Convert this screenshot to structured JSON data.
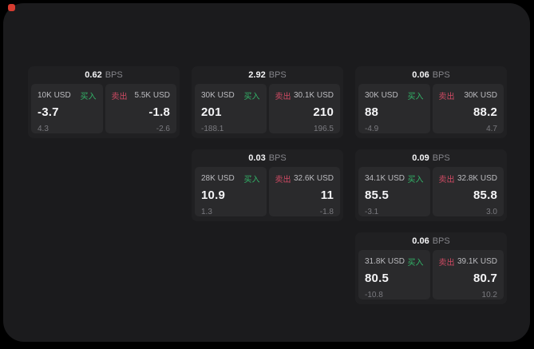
{
  "app": {
    "background": "#000000",
    "panel_color": "#1b1b1d",
    "card_color": "#202022",
    "tile_color": "#2a2a2c",
    "buy_color": "#32b368",
    "sell_color": "#cf4a63",
    "indicator_color": "#d63c30"
  },
  "labels": {
    "bps_unit": "BPS",
    "buy": "买入",
    "sell": "卖出"
  },
  "cards": [
    {
      "bps": "0.62",
      "buy": {
        "amount": "10K USD",
        "price": "-3.7",
        "delta": "4.3"
      },
      "sell": {
        "amount": "5.5K USD",
        "price": "-1.8",
        "delta": "-2.6"
      }
    },
    {
      "bps": "2.92",
      "buy": {
        "amount": "30K USD",
        "price": "201",
        "delta": "-188.1"
      },
      "sell": {
        "amount": "30.1K USD",
        "price": "210",
        "delta": "196.5"
      }
    },
    {
      "bps": "0.06",
      "buy": {
        "amount": "30K USD",
        "price": "88",
        "delta": "-4.9"
      },
      "sell": {
        "amount": "30K USD",
        "price": "88.2",
        "delta": "4.7"
      }
    },
    {
      "bps": "0.03",
      "buy": {
        "amount": "28K USD",
        "price": "10.9",
        "delta": "1.3"
      },
      "sell": {
        "amount": "32.6K USD",
        "price": "11",
        "delta": "-1.8"
      }
    },
    {
      "bps": "0.09",
      "buy": {
        "amount": "34.1K USD",
        "price": "85.5",
        "delta": "-3.1"
      },
      "sell": {
        "amount": "32.8K USD",
        "price": "85.8",
        "delta": "3.0"
      }
    },
    {
      "bps": "0.06",
      "buy": {
        "amount": "31.8K USD",
        "price": "80.5",
        "delta": "-10.8"
      },
      "sell": {
        "amount": "39.1K USD",
        "price": "80.7",
        "delta": "10.2"
      }
    }
  ]
}
